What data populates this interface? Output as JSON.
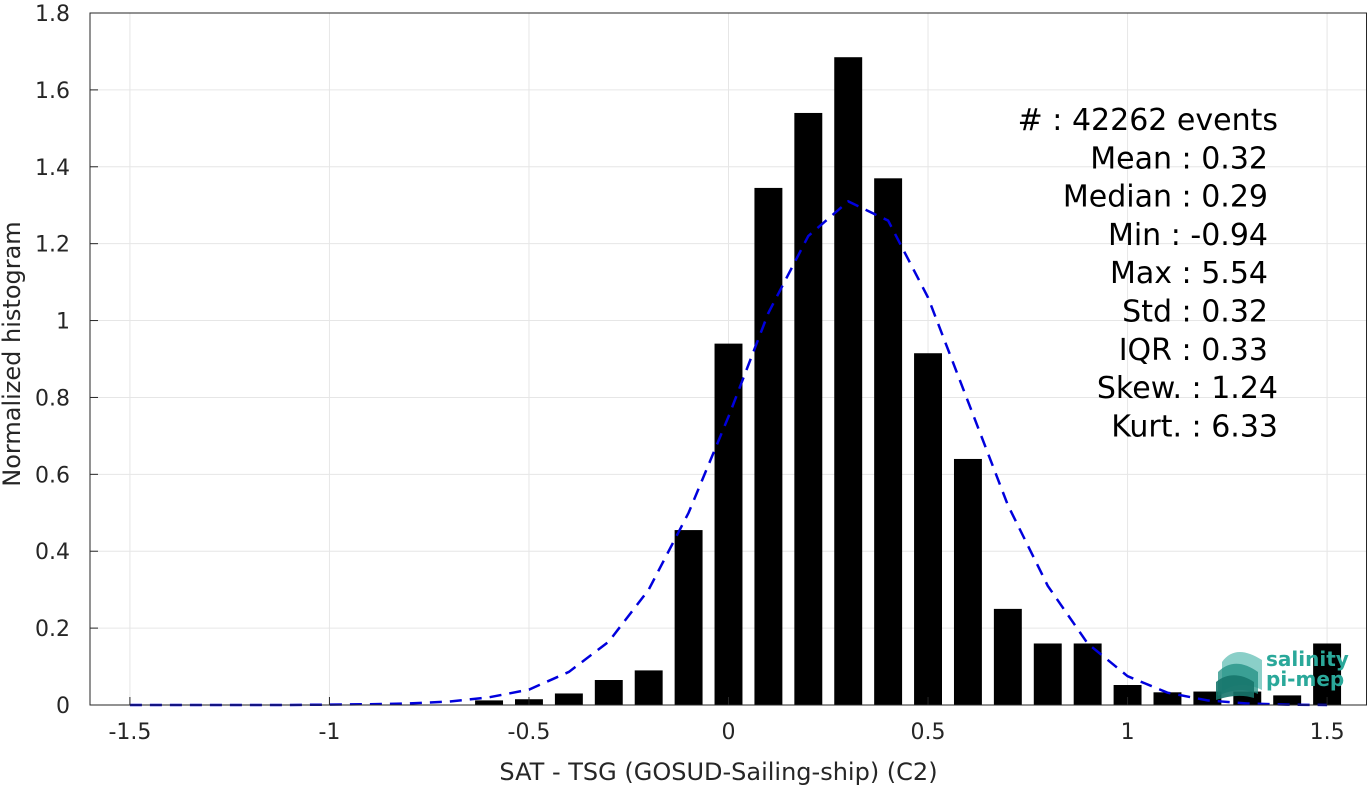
{
  "chart_data": {
    "type": "bar",
    "xlabel": "SAT - TSG (GOSUD-Sailing-ship) (C2)",
    "ylabel": "Normalized histogram",
    "xlim": [
      -1.6,
      1.6
    ],
    "ylim": [
      0,
      1.8
    ],
    "xticks": [
      -1.5,
      -1,
      -0.5,
      0,
      0.5,
      1,
      1.5
    ],
    "xtick_labels": [
      "-1.5",
      "-1",
      "-0.5",
      "0",
      "0.5",
      "1",
      "1.5"
    ],
    "yticks": [
      0,
      0.2,
      0.4,
      0.6,
      0.8,
      1,
      1.2,
      1.4,
      1.6,
      1.8
    ],
    "ytick_labels": [
      "0",
      "0.2",
      "0.4",
      "0.6",
      "0.8",
      "1",
      "1.2",
      "1.4",
      "1.6",
      "1.8"
    ],
    "grid": true,
    "bin_width": 0.1,
    "bar_width_fraction": 0.7,
    "bars": {
      "color": "#000000",
      "centers": [
        -0.6,
        -0.5,
        -0.4,
        -0.3,
        -0.2,
        -0.1,
        0.0,
        0.1,
        0.2,
        0.3,
        0.4,
        0.5,
        0.6,
        0.7,
        0.8,
        0.9,
        1.0,
        1.1,
        1.2,
        1.3,
        1.4,
        1.5
      ],
      "values": [
        0.012,
        0.015,
        0.03,
        0.065,
        0.09,
        0.455,
        0.94,
        1.345,
        1.54,
        1.685,
        1.37,
        0.915,
        0.64,
        0.25,
        0.16,
        0.16,
        0.052,
        0.033,
        0.035,
        0.035,
        0.025,
        0.16
      ]
    },
    "fit_curve": {
      "style": "dashed",
      "color": "#0000dd",
      "x": [
        -1.5,
        -1.4,
        -1.3,
        -1.2,
        -1.1,
        -1.0,
        -0.9,
        -0.8,
        -0.7,
        -0.6,
        -0.5,
        -0.4,
        -0.3,
        -0.2,
        -0.1,
        0.0,
        0.1,
        0.2,
        0.3,
        0.4,
        0.5,
        0.6,
        0.7,
        0.8,
        0.9,
        1.0,
        1.1,
        1.2,
        1.3,
        1.4,
        1.5
      ],
      "y": [
        0.0,
        0.0,
        0.0,
        0.0,
        0.0,
        0.001,
        0.002,
        0.004,
        0.009,
        0.02,
        0.04,
        0.086,
        0.165,
        0.3,
        0.5,
        0.75,
        1.02,
        1.22,
        1.31,
        1.26,
        1.06,
        0.79,
        0.52,
        0.31,
        0.16,
        0.075,
        0.032,
        0.012,
        0.004,
        0.001,
        0.0
      ]
    },
    "annotations": [
      {
        "label": "#",
        "value": ": 42262 events"
      },
      {
        "label": "Mean",
        "value": ": 0.32"
      },
      {
        "label": "Median",
        "value": ": 0.29"
      },
      {
        "label": "Min",
        "value": ": -0.94"
      },
      {
        "label": "Max",
        "value": ": 5.54"
      },
      {
        "label": "Std",
        "value": ": 0.32"
      },
      {
        "label": "IQR",
        "value": ": 0.33"
      },
      {
        "label": "Skew.",
        "value": ": 1.24"
      },
      {
        "label": "Kurt.",
        "value": ": 6.33"
      }
    ]
  },
  "logo": {
    "line1": "salinity",
    "line2": "pi-mep",
    "color": "#2aa89a"
  }
}
